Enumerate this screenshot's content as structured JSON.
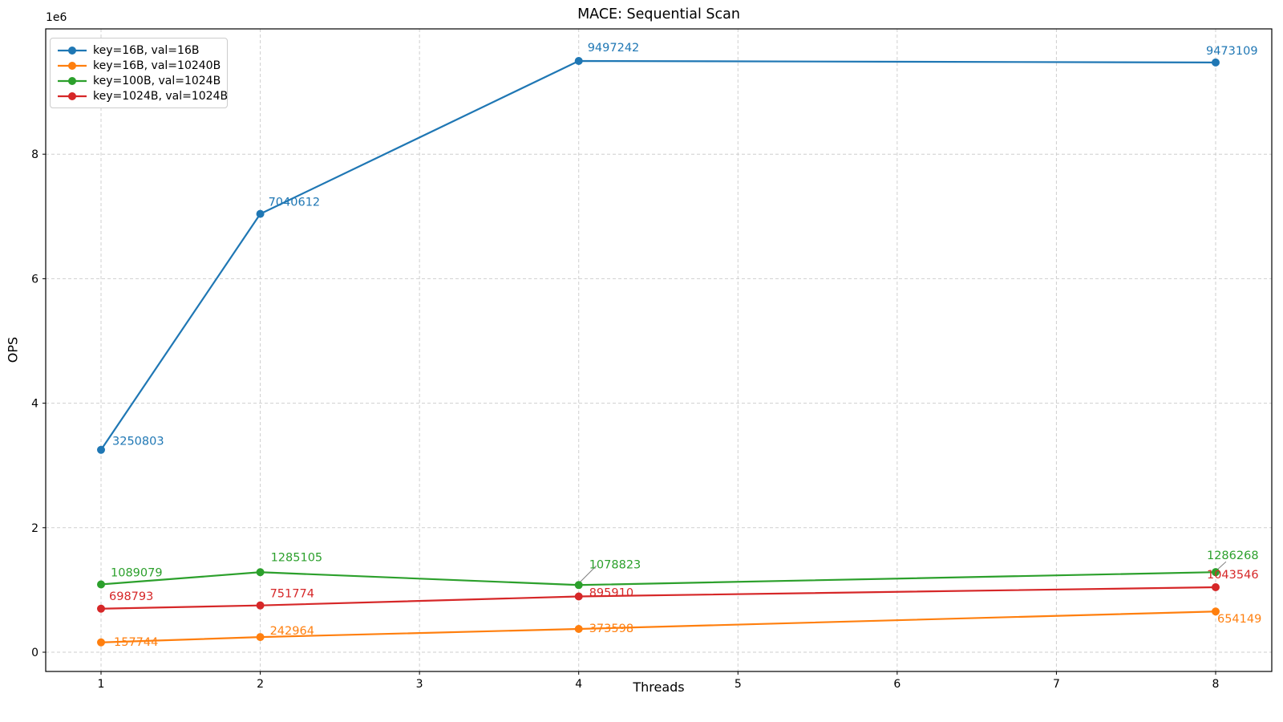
{
  "chart_data": {
    "type": "line",
    "title": "MACE: Sequential Scan",
    "xlabel": "Threads",
    "ylabel": "OPS",
    "y_offset_text": "1e6",
    "grid": true,
    "legend_position": "upper left",
    "marker": "circle",
    "x": [
      1,
      2,
      4,
      8
    ],
    "xticks": [
      1,
      2,
      3,
      4,
      5,
      6,
      7,
      8
    ],
    "yticks_1e6": [
      0,
      2,
      4,
      6,
      8
    ],
    "ylim": [
      -310000,
      10000000
    ],
    "series": [
      {
        "name": "key=16B, val=16B",
        "color": "#1f77b4",
        "values": [
          3250803,
          7040612,
          9497242,
          9473109
        ]
      },
      {
        "name": "key=16B, val=10240B",
        "color": "#ff7f0e",
        "values": [
          157744,
          242964,
          373598,
          654149
        ]
      },
      {
        "name": "key=100B, val=1024B",
        "color": "#2ca02c",
        "values": [
          1089079,
          1285105,
          1078823,
          1286268
        ]
      },
      {
        "name": "key=1024B, val=1024B",
        "color": "#d62728",
        "values": [
          698793,
          751774,
          895910,
          1043546
        ]
      }
    ]
  }
}
